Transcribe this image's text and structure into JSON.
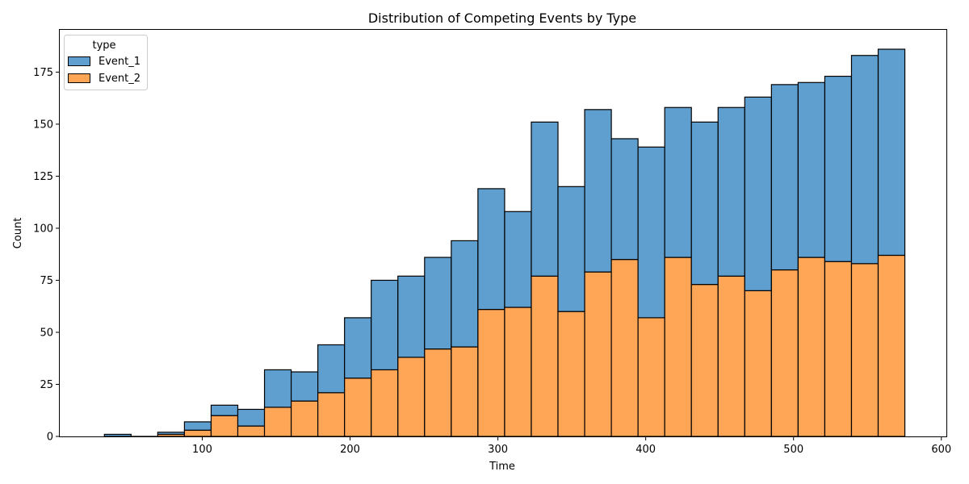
{
  "chart_data": {
    "type": "bar",
    "stacked": true,
    "title": "Distribution of Competing Events by Type",
    "xlabel": "Time",
    "ylabel": "Count",
    "xlim": [
      3.6,
      603.4
    ],
    "ylim": [
      0,
      195.3
    ],
    "xticks": [
      100,
      200,
      300,
      400,
      500,
      600
    ],
    "yticks": [
      0,
      25,
      50,
      75,
      100,
      125,
      150,
      175
    ],
    "grid": false,
    "legend": {
      "title": "type",
      "placement": "top-left"
    },
    "colors": {
      "Event_1": "#1f77b4",
      "Event_2": "#ff7f0e"
    },
    "bin_start": 33.8,
    "bin_width": 18.05,
    "series": [
      {
        "name": "Event_1",
        "values": [
          1,
          0,
          1,
          4,
          5,
          8,
          18,
          14,
          23,
          29,
          43,
          39,
          44,
          51,
          58,
          46,
          74,
          60,
          78,
          58,
          82,
          72,
          78,
          81,
          93,
          89,
          84,
          89,
          100,
          99
        ]
      },
      {
        "name": "Event_2",
        "values": [
          0,
          0,
          1,
          3,
          10,
          5,
          14,
          17,
          21,
          28,
          32,
          38,
          42,
          43,
          61,
          62,
          77,
          60,
          79,
          85,
          57,
          86,
          73,
          77,
          70,
          80,
          86,
          84,
          83,
          87
        ]
      }
    ]
  }
}
